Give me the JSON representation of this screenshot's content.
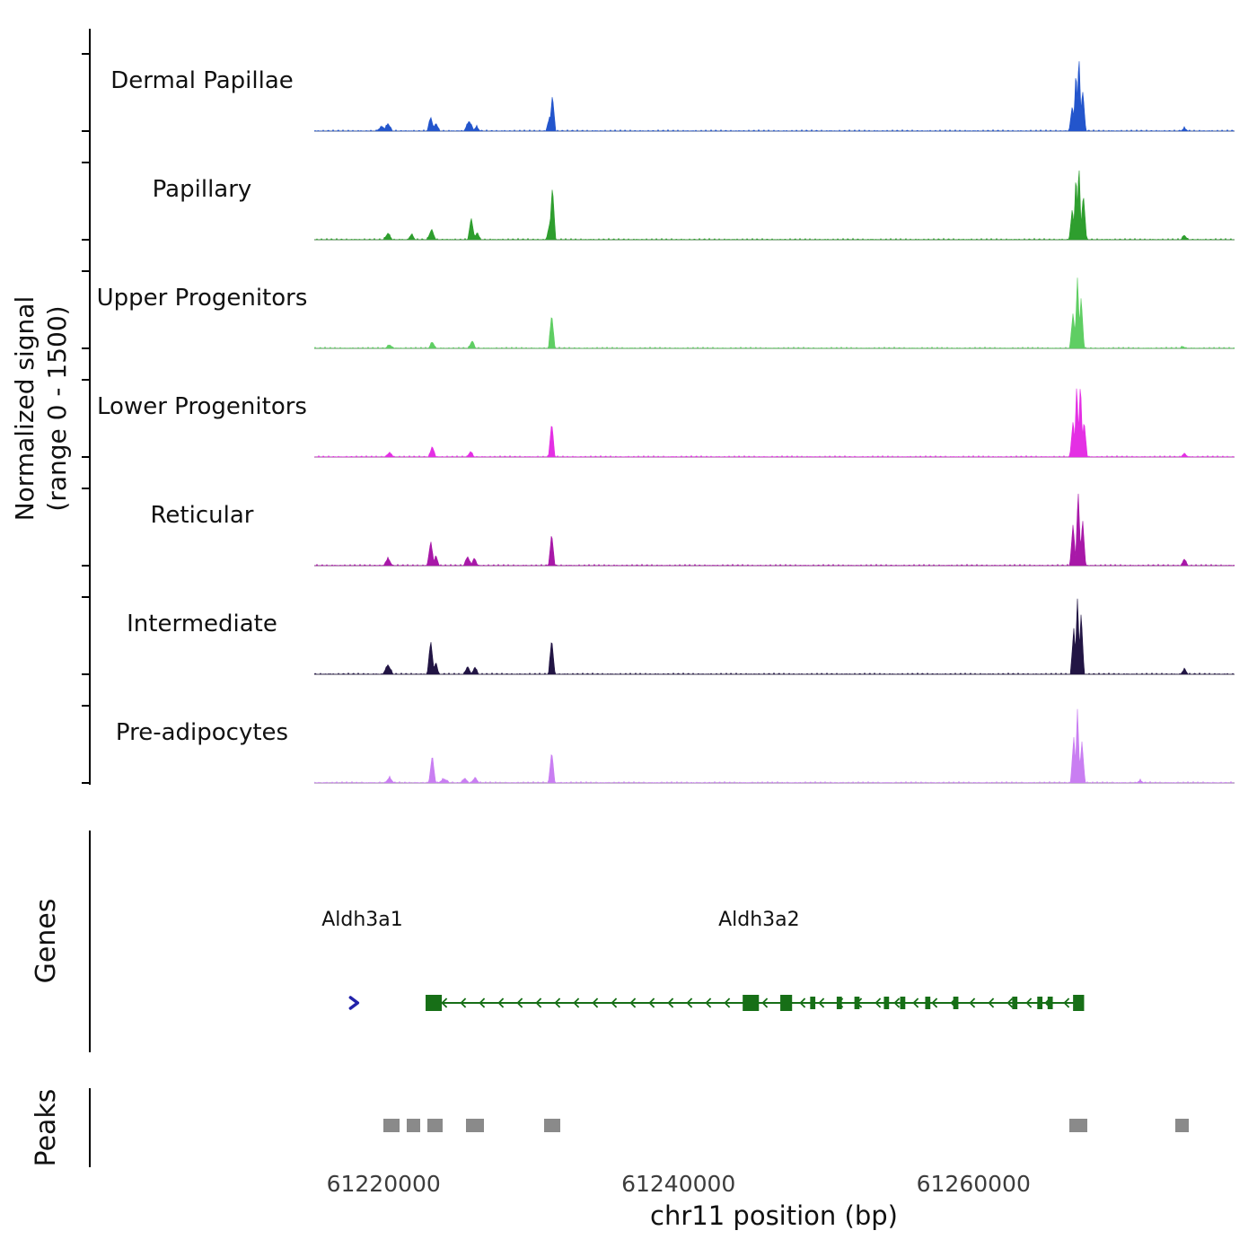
{
  "figure": {
    "axes": {
      "y_label_line1": "Normalized signal",
      "y_label_line2": "(range 0 - 1500)",
      "x_label": "chr11 position (bp)"
    },
    "sections": {
      "genes_label": "Genes",
      "peaks_label": "Peaks"
    }
  },
  "chart_data": {
    "type": "area",
    "title": "",
    "xlabel": "chr11 position (bp)",
    "ylabel": "Normalized signal (range 0 - 1500)",
    "xlim": [
      61215300,
      61277700
    ],
    "ylim": [
      0,
      1500
    ],
    "x_ticks": [
      61220000,
      61240000,
      61260000
    ],
    "x_tick_labels": [
      "61220000",
      "61240000",
      "61260000"
    ],
    "tracks": [
      {
        "name": "Dermal Papillae",
        "color": "#2355cc",
        "spikes": [
          [
            61219900,
            90,
            800
          ],
          [
            61220300,
            150,
            600
          ],
          [
            61223200,
            280,
            500
          ],
          [
            61223550,
            160,
            500
          ],
          [
            61225800,
            200,
            700
          ],
          [
            61226300,
            90,
            500
          ],
          [
            61231250,
            260,
            500
          ],
          [
            61231450,
            700,
            450
          ],
          [
            61266700,
            500,
            450
          ],
          [
            61266950,
            1200,
            350
          ],
          [
            61267150,
            1500,
            350
          ],
          [
            61267400,
            800,
            450
          ],
          [
            61274300,
            60,
            500
          ]
        ]
      },
      {
        "name": "Papillary",
        "color": "#2e9e2e",
        "spikes": [
          [
            61220300,
            130,
            600
          ],
          [
            61221900,
            110,
            500
          ],
          [
            61223250,
            200,
            600
          ],
          [
            61225950,
            420,
            500
          ],
          [
            61226350,
            150,
            450
          ],
          [
            61231250,
            300,
            450
          ],
          [
            61231450,
            1050,
            450
          ],
          [
            61266700,
            600,
            450
          ],
          [
            61266950,
            1300,
            350
          ],
          [
            61267150,
            1500,
            350
          ],
          [
            61267450,
            900,
            450
          ],
          [
            61274300,
            90,
            500
          ]
        ]
      },
      {
        "name": "Upper Progenitors",
        "color": "#5fce63",
        "spikes": [
          [
            61220400,
            70,
            600
          ],
          [
            61223300,
            130,
            500
          ],
          [
            61226000,
            150,
            500
          ],
          [
            61231400,
            680,
            450
          ],
          [
            61266750,
            700,
            450
          ],
          [
            61267050,
            1400,
            380
          ],
          [
            61267300,
            1000,
            420
          ],
          [
            61274200,
            40,
            400
          ]
        ]
      },
      {
        "name": "Lower Progenitors",
        "color": "#e42fe4",
        "spikes": [
          [
            61220400,
            90,
            600
          ],
          [
            61223300,
            210,
            500
          ],
          [
            61225900,
            110,
            500
          ],
          [
            61231400,
            680,
            450
          ],
          [
            61266750,
            700,
            450
          ],
          [
            61267000,
            1450,
            350
          ],
          [
            61267250,
            1500,
            350
          ],
          [
            61267500,
            700,
            450
          ],
          [
            61274300,
            70,
            500
          ]
        ]
      },
      {
        "name": "Reticular",
        "color": "#a818a8",
        "spikes": [
          [
            61220300,
            150,
            600
          ],
          [
            61223200,
            480,
            500
          ],
          [
            61223550,
            200,
            450
          ],
          [
            61225700,
            180,
            550
          ],
          [
            61226150,
            150,
            500
          ],
          [
            61231400,
            620,
            450
          ],
          [
            61266750,
            800,
            450
          ],
          [
            61267100,
            1450,
            400
          ],
          [
            61267400,
            900,
            420
          ],
          [
            61274300,
            130,
            500
          ]
        ]
      },
      {
        "name": "Intermediate",
        "color": "#221544",
        "spikes": [
          [
            61220300,
            190,
            700
          ],
          [
            61223200,
            660,
            500
          ],
          [
            61223550,
            250,
            400
          ],
          [
            61225700,
            150,
            550
          ],
          [
            61226200,
            140,
            500
          ],
          [
            61231400,
            700,
            450
          ],
          [
            61266800,
            900,
            450
          ],
          [
            61267050,
            1500,
            380
          ],
          [
            61267300,
            1200,
            420
          ],
          [
            61274300,
            110,
            500
          ]
        ]
      },
      {
        "name": "Pre-adipocytes",
        "color": "#c97ef2",
        "spikes": [
          [
            61220400,
            110,
            600
          ],
          [
            61223300,
            540,
            480
          ],
          [
            61224100,
            80,
            800
          ],
          [
            61225500,
            90,
            600
          ],
          [
            61226200,
            100,
            600
          ],
          [
            61231400,
            620,
            450
          ],
          [
            61266800,
            900,
            450
          ],
          [
            61267050,
            1450,
            360
          ],
          [
            61267350,
            800,
            450
          ],
          [
            61271300,
            50,
            500
          ]
        ]
      }
    ],
    "gene_track": {
      "labels": [
        {
          "text": "Aldh3a1",
          "x": 61215800
        },
        {
          "text": "Aldh3a2",
          "x": 61242700
        }
      ],
      "marker": {
        "gene": "Aldh3a1",
        "x": 61218000,
        "strand": "+",
        "color": "#2323aa"
      },
      "gene": {
        "name": "Aldh3a2",
        "strand": "-",
        "start": 61223250,
        "end": 61267400,
        "color": "#176f17",
        "exons": [
          [
            61223400,
            1100,
            1
          ],
          [
            61244900,
            1100,
            1
          ],
          [
            61247300,
            800,
            1
          ],
          [
            61249100,
            350,
            0
          ],
          [
            61250900,
            350,
            0
          ],
          [
            61252100,
            350,
            0
          ],
          [
            61254100,
            350,
            0
          ],
          [
            61255200,
            350,
            0
          ],
          [
            61256900,
            350,
            0
          ],
          [
            61258800,
            350,
            0
          ],
          [
            61262800,
            350,
            0
          ],
          [
            61264500,
            350,
            0
          ],
          [
            61265200,
            350,
            0
          ],
          [
            61267000,
            500,
            1
          ],
          [
            61267350,
            300,
            1
          ]
        ]
      }
    },
    "peaks": {
      "color": "#8a8a8a",
      "boxes": [
        [
          61220000,
          1100
        ],
        [
          61221600,
          900
        ],
        [
          61223000,
          1000
        ],
        [
          61225600,
          1200
        ],
        [
          61230900,
          1100
        ],
        [
          61266500,
          1200
        ],
        [
          61273700,
          900
        ]
      ]
    }
  }
}
